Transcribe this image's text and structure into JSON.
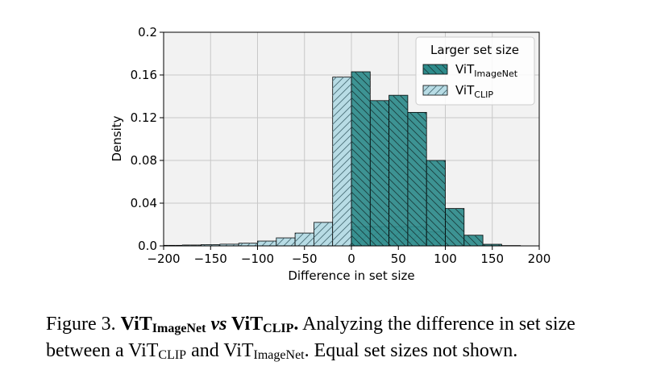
{
  "chart_data": {
    "type": "histogram",
    "xlabel": "Difference in set size",
    "ylabel": "Density",
    "xlim": [
      -200,
      200
    ],
    "ylim": [
      0,
      0.2
    ],
    "xticks": [
      "−200",
      "−150",
      "−100",
      "−50",
      "0",
      "50",
      "100",
      "150",
      "200"
    ],
    "xtick_values": [
      -200,
      -150,
      -100,
      -50,
      0,
      50,
      100,
      150,
      200
    ],
    "yticks": [
      "0.0",
      "0.04",
      "0.08",
      "0.12",
      "0.16",
      "0.2"
    ],
    "ytick_values": [
      0,
      0.04,
      0.08,
      0.12,
      0.16,
      0.2
    ],
    "grid": true,
    "legend": {
      "title": "Larger set size",
      "placement": "top-right",
      "entries": [
        {
          "base": "ViT",
          "sub": "ImageNet"
        },
        {
          "base": "ViT",
          "sub": "CLIP"
        }
      ]
    },
    "series": [
      {
        "key": "imagenet",
        "color": "#2e8b8b",
        "hatch": "\\\\",
        "bin_width": 20,
        "bins": [
          {
            "x0": 0,
            "value": 0.163
          },
          {
            "x0": 20,
            "value": 0.136
          },
          {
            "x0": 40,
            "value": 0.141
          },
          {
            "x0": 60,
            "value": 0.125
          },
          {
            "x0": 80,
            "value": 0.08
          },
          {
            "x0": 100,
            "value": 0.035
          },
          {
            "x0": 120,
            "value": 0.01
          },
          {
            "x0": 140,
            "value": 0.0015
          },
          {
            "x0": 160,
            "value": 0.0003
          }
        ]
      },
      {
        "key": "clip",
        "color": "#b8dce5",
        "hatch": "//",
        "bin_width": 20,
        "bins": [
          {
            "x0": -200,
            "value": 0.0005
          },
          {
            "x0": -180,
            "value": 0.0008
          },
          {
            "x0": -160,
            "value": 0.0012
          },
          {
            "x0": -140,
            "value": 0.0016
          },
          {
            "x0": -120,
            "value": 0.0025
          },
          {
            "x0": -100,
            "value": 0.0045
          },
          {
            "x0": -80,
            "value": 0.0075
          },
          {
            "x0": -60,
            "value": 0.012
          },
          {
            "x0": -40,
            "value": 0.022
          },
          {
            "x0": -20,
            "value": 0.158
          },
          {
            "x0": 0,
            "value": 0.018
          },
          {
            "x0": 20,
            "value": 0.018
          },
          {
            "x0": 40,
            "value": 0.018
          },
          {
            "x0": 60,
            "value": 0.018
          },
          {
            "x0": 80,
            "value": 0.013
          }
        ]
      }
    ]
  },
  "caption": {
    "figure_label": "Figure 3.",
    "title_a_base": "ViT",
    "title_a_sub": "ImageNet",
    "title_vs": "vs",
    "title_b_base": "ViT",
    "title_b_sub": "CLIP",
    "title_end": ".",
    "text_1": "Analyzing the difference in set size between a",
    "text_a_base": "ViT",
    "text_a_sub": "CLIP",
    "text_and": "and",
    "text_b_base": "ViT",
    "text_b_sub": "ImageNet",
    "text_2": ". Equal set sizes not shown."
  }
}
